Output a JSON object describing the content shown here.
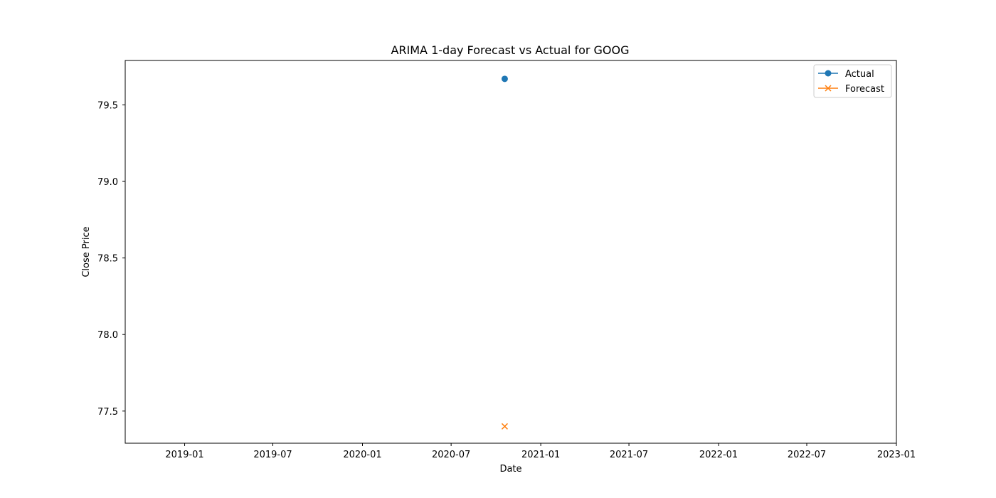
{
  "chart_data": {
    "type": "line",
    "title": "ARIMA 1-day Forecast vs Actual for GOOG",
    "xlabel": "Date",
    "ylabel": "Close Price",
    "x_axis_type": "date",
    "xlim": [
      "2018-09-01",
      "2023-01-01"
    ],
    "ylim": [
      77.29,
      79.79
    ],
    "x_ticks": [
      "2019-01",
      "2019-07",
      "2020-01",
      "2020-07",
      "2021-01",
      "2021-07",
      "2022-01",
      "2022-07",
      "2023-01"
    ],
    "y_ticks": [
      "77.5",
      "78.0",
      "78.5",
      "79.0",
      "79.5"
    ],
    "grid": false,
    "legend_position": "top-right",
    "series": [
      {
        "name": "Actual",
        "color": "#1f77b4",
        "marker": "circle",
        "points": [
          {
            "x": "2020-10-19",
            "y": 79.67
          }
        ]
      },
      {
        "name": "Forecast",
        "color": "#ff7f0e",
        "marker": "x",
        "points": [
          {
            "x": "2020-10-19",
            "y": 77.4
          }
        ]
      }
    ]
  }
}
